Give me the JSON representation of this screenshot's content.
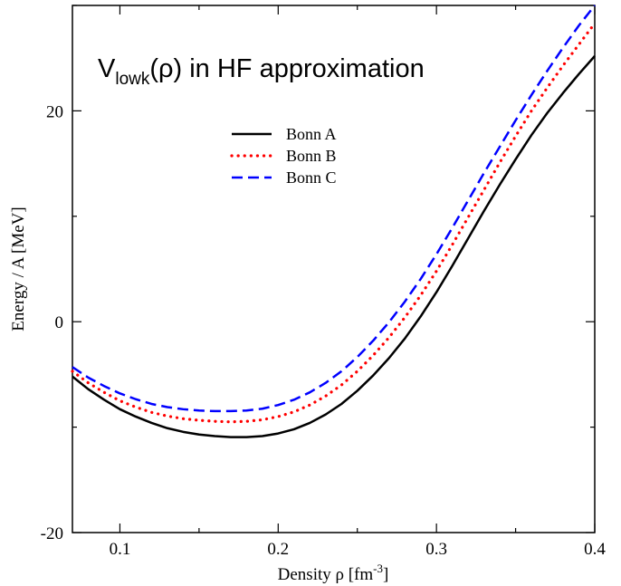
{
  "chart_data": {
    "type": "line",
    "title_main": "V",
    "title_sub": "lowk",
    "title_rest": "(ρ)  in  HF approximation",
    "xlabel_main": "Density ρ [fm",
    "xlabel_sup": "-3",
    "xlabel_end": "]",
    "ylabel": "Energy / A [MeV]",
    "xlim": [
      0.07,
      0.4
    ],
    "ylim": [
      -20,
      30
    ],
    "xticks": [
      0.1,
      0.2,
      0.3,
      0.4
    ],
    "xtick_labels": [
      "0.1",
      "0.2",
      "0.3",
      "0.4"
    ],
    "yticks": [
      -20,
      0,
      20
    ],
    "ytick_labels": [
      "-20",
      "0",
      "20"
    ],
    "grid": false,
    "legend_position": "upper-center",
    "series": [
      {
        "name": "Bonn A",
        "color": "#000000",
        "style": "solid",
        "x": [
          0.07,
          0.08,
          0.09,
          0.1,
          0.11,
          0.12,
          0.13,
          0.14,
          0.15,
          0.16,
          0.17,
          0.18,
          0.19,
          0.2,
          0.21,
          0.22,
          0.23,
          0.24,
          0.25,
          0.26,
          0.27,
          0.28,
          0.29,
          0.3,
          0.31,
          0.32,
          0.33,
          0.34,
          0.35,
          0.36,
          0.37,
          0.38,
          0.39,
          0.4
        ],
        "y": [
          -5.2,
          -6.4,
          -7.4,
          -8.3,
          -9.0,
          -9.6,
          -10.1,
          -10.45,
          -10.7,
          -10.85,
          -10.95,
          -10.95,
          -10.85,
          -10.6,
          -10.2,
          -9.6,
          -8.8,
          -7.8,
          -6.55,
          -5.1,
          -3.45,
          -1.6,
          0.5,
          2.8,
          5.3,
          7.9,
          10.5,
          13.0,
          15.4,
          17.7,
          19.8,
          21.7,
          23.5,
          25.2
        ]
      },
      {
        "name": "Bonn B",
        "color": "#ff0000",
        "style": "dotted",
        "x": [
          0.07,
          0.08,
          0.09,
          0.1,
          0.11,
          0.12,
          0.13,
          0.14,
          0.15,
          0.16,
          0.17,
          0.18,
          0.19,
          0.2,
          0.21,
          0.22,
          0.23,
          0.24,
          0.25,
          0.26,
          0.27,
          0.28,
          0.29,
          0.3,
          0.31,
          0.32,
          0.33,
          0.34,
          0.35,
          0.36,
          0.37,
          0.38,
          0.39,
          0.4
        ],
        "y": [
          -4.7,
          -5.8,
          -6.7,
          -7.5,
          -8.1,
          -8.6,
          -8.95,
          -9.2,
          -9.35,
          -9.45,
          -9.5,
          -9.45,
          -9.3,
          -9.0,
          -8.55,
          -7.9,
          -7.05,
          -6.0,
          -4.7,
          -3.2,
          -1.5,
          0.4,
          2.5,
          4.8,
          7.3,
          9.9,
          12.5,
          15.1,
          17.6,
          20.0,
          22.2,
          24.3,
          26.3,
          28.3
        ]
      },
      {
        "name": "Bonn C",
        "color": "#0000ff",
        "style": "dashed",
        "x": [
          0.07,
          0.08,
          0.09,
          0.1,
          0.11,
          0.12,
          0.13,
          0.14,
          0.15,
          0.16,
          0.17,
          0.18,
          0.19,
          0.2,
          0.21,
          0.22,
          0.23,
          0.24,
          0.25,
          0.26,
          0.27,
          0.28,
          0.29,
          0.3,
          0.31,
          0.32,
          0.33,
          0.34,
          0.35,
          0.36,
          0.37,
          0.38,
          0.39,
          0.4
        ],
        "y": [
          -4.3,
          -5.3,
          -6.1,
          -6.8,
          -7.35,
          -7.8,
          -8.1,
          -8.3,
          -8.42,
          -8.48,
          -8.48,
          -8.42,
          -8.25,
          -7.9,
          -7.4,
          -6.7,
          -5.8,
          -4.7,
          -3.35,
          -1.8,
          -0.05,
          1.9,
          4.05,
          6.4,
          8.9,
          11.5,
          14.1,
          16.6,
          19.1,
          21.5,
          23.8,
          26.0,
          28.1,
          30.0
        ]
      }
    ]
  }
}
